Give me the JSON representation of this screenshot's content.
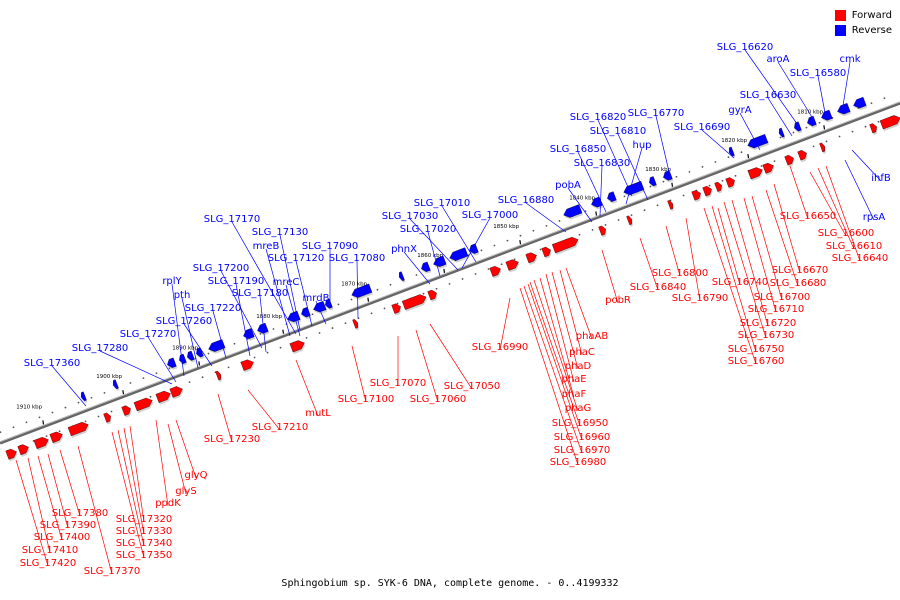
{
  "legend": [
    {
      "label": "Forward",
      "color": "#ff0000"
    },
    {
      "label": "Reverse",
      "color": "#0000ff"
    }
  ],
  "caption": "Sphingobium sp. SYK-6 DNA, complete genome. - 0..4199332",
  "colors": {
    "forward": "#ff0000",
    "reverse": "#0000ff",
    "backbone": "#666666"
  },
  "kbp_ticks": [
    "1810 kbp",
    "1820 kbp",
    "1830 kbp",
    "1840 kbp",
    "1850 kbp",
    "1860 kbp",
    "1870 kbp",
    "1880 kbp",
    "1890 kbp",
    "1900 kbp",
    "1910 kbp"
  ],
  "reverse_labels": [
    "SLG_16620",
    "aroA",
    "SLG_16580",
    "cmk",
    "SLG_16630",
    "gyrA",
    "SLG_16690",
    "SLG_16770",
    "SLG_16820",
    "SLG_16810",
    "hup",
    "SLG_16850",
    "SLG_16830",
    "pobA",
    "SLG_16880",
    "SLG_17010",
    "SLG_17030",
    "SLG_17020",
    "SLG_17000",
    "phnX",
    "SLG_17170",
    "SLG_17130",
    "mreB",
    "SLG_17090",
    "SLG_17120",
    "mreC",
    "mrdB",
    "SLG_17080",
    "SLG_17200",
    "rplY",
    "SLG_17190",
    "SLG_17180",
    "pth",
    "SLG_17260",
    "SLG_17220",
    "SLG_17270",
    "SLG_17280",
    "SLG_17360",
    "ihfB",
    "rpsA"
  ],
  "forward_labels": [
    "SLG_16650",
    "SLG_16600",
    "SLG_16610",
    "SLG_16640",
    "SLG_16670",
    "SLG_16680",
    "SLG_16700",
    "SLG_16710",
    "SLG_16720",
    "SLG_16730",
    "SLG_16750",
    "SLG_16760",
    "SLG_16740",
    "SLG_16790",
    "SLG_16800",
    "SLG_16840",
    "pobR",
    "phaAB",
    "phaC",
    "phaD",
    "phaE",
    "phaF",
    "phaG",
    "SLG_16950",
    "SLG_16960",
    "SLG_16970",
    "SLG_16980",
    "SLG_16990",
    "SLG_17050",
    "SLG_17060",
    "SLG_17070",
    "SLG_17100",
    "mutL",
    "SLG_17210",
    "SLG_17230",
    "glyQ",
    "glyS",
    "ppdK",
    "SLG_17320",
    "SLG_17330",
    "SLG_17340",
    "SLG_17350",
    "SLG_17370",
    "SLG_17380",
    "SLG_17390",
    "SLG_17400",
    "SLG_17410",
    "SLG_17420"
  ]
}
